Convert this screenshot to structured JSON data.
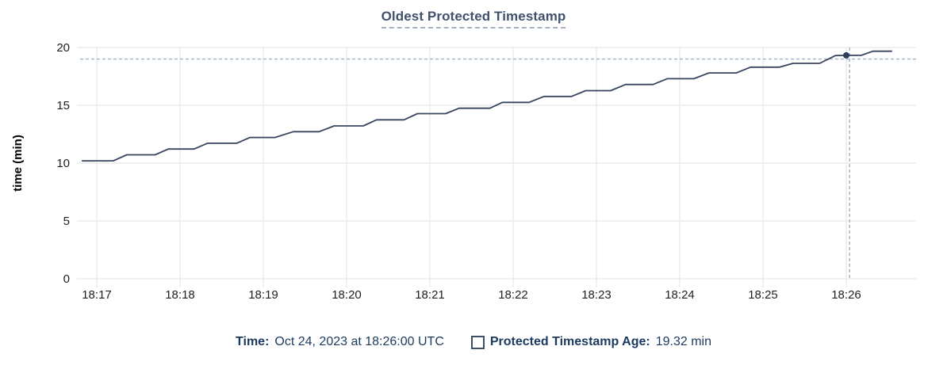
{
  "title": "Oldest Protected Timestamp",
  "tooltip": {
    "time_label": "Time:",
    "time_value": "Oct 24, 2023 at 18:26:00 UTC",
    "series_label": "Protected Timestamp Age:",
    "series_value": "19.32 min"
  },
  "colors": {
    "title": "#41516d",
    "legend_text": "#1b3a5f",
    "line": "#37455f",
    "marker": "#2b3d59",
    "crosshair": "#9fb3c4",
    "grid": "#ececec",
    "tick_text": "#1f1f1f",
    "axis_title_text": "#000000"
  },
  "chart_data": {
    "type": "line",
    "title": "Oldest Protected Timestamp",
    "xlabel": "",
    "ylabel": "time (min)",
    "ylim": [
      0,
      20
    ],
    "y_ticks": [
      0,
      5,
      10,
      15,
      20
    ],
    "x_ticks": [
      "18:17",
      "18:18",
      "18:19",
      "18:20",
      "18:21",
      "18:22",
      "18:23",
      "18:24",
      "18:25",
      "18:26"
    ],
    "grid": true,
    "legend_position": "bottom",
    "series": [
      {
        "name": "Protected Timestamp Age",
        "unit": "min",
        "points_note": "x = minutes after 18:17, y = age in minutes",
        "points": [
          [
            -0.18,
            10.2
          ],
          [
            0.2,
            10.2
          ],
          [
            0.36,
            10.72
          ],
          [
            0.7,
            10.72
          ],
          [
            0.86,
            11.22
          ],
          [
            1.17,
            11.22
          ],
          [
            1.33,
            11.72
          ],
          [
            1.68,
            11.72
          ],
          [
            1.84,
            12.22
          ],
          [
            2.14,
            12.22
          ],
          [
            2.36,
            12.72
          ],
          [
            2.67,
            12.72
          ],
          [
            2.85,
            13.22
          ],
          [
            3.2,
            13.22
          ],
          [
            3.36,
            13.75
          ],
          [
            3.69,
            13.75
          ],
          [
            3.85,
            14.28
          ],
          [
            4.19,
            14.28
          ],
          [
            4.35,
            14.75
          ],
          [
            4.72,
            14.75
          ],
          [
            4.87,
            15.25
          ],
          [
            5.19,
            15.25
          ],
          [
            5.37,
            15.77
          ],
          [
            5.7,
            15.77
          ],
          [
            5.87,
            16.27
          ],
          [
            6.17,
            16.27
          ],
          [
            6.35,
            16.8
          ],
          [
            6.68,
            16.8
          ],
          [
            6.85,
            17.3
          ],
          [
            7.17,
            17.3
          ],
          [
            7.35,
            17.8
          ],
          [
            7.68,
            17.8
          ],
          [
            7.85,
            18.3
          ],
          [
            8.2,
            18.3
          ],
          [
            8.36,
            18.63
          ],
          [
            8.68,
            18.63
          ],
          [
            8.87,
            19.3
          ],
          [
            9.0,
            19.32
          ],
          [
            9.18,
            19.32
          ],
          [
            9.32,
            19.68
          ],
          [
            9.55,
            19.68
          ]
        ]
      }
    ],
    "hover": {
      "x_tick_label": "18:26",
      "x_min_offset": 9.0,
      "value": 19.32,
      "crosshair_x_min_offset": 9.04,
      "crosshair_y_value": 19.0
    }
  }
}
